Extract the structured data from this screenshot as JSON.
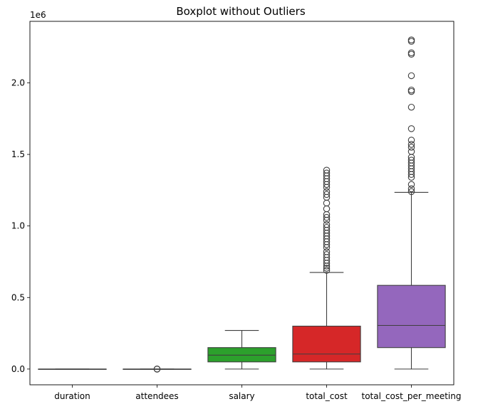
{
  "chart_data": {
    "type": "box",
    "title": "Boxplot without Outliers",
    "scale_label": "1e6",
    "xlabel": "",
    "ylabel": "",
    "ylim": [
      -110000,
      2430000
    ],
    "y_ticks": [
      0,
      500000,
      1000000,
      1500000,
      2000000
    ],
    "y_tick_labels": [
      "0.0",
      "0.5",
      "1.0",
      "1.5",
      "2.0"
    ],
    "grid": false,
    "legend": "none",
    "categories": [
      "duration",
      "attendees",
      "salary",
      "total_cost",
      "total_cost_per_meeting"
    ],
    "boxes": [
      {
        "name": "duration",
        "color": "#1f77b4",
        "whisker_low": 0,
        "q1": 0,
        "median": 0,
        "q3": 0,
        "whisker_high": 0,
        "outliers": []
      },
      {
        "name": "attendees",
        "color": "#ff7f0e",
        "whisker_low": 0,
        "q1": 0,
        "median": 0,
        "q3": 0,
        "whisker_high": 0,
        "outliers": [
          1,
          2,
          3
        ]
      },
      {
        "name": "salary",
        "color": "#2ca02c",
        "whisker_low": 0,
        "q1": 50000,
        "median": 97000,
        "q3": 150000,
        "whisker_high": 270000,
        "outliers": []
      },
      {
        "name": "total_cost",
        "color": "#d62728",
        "whisker_low": 0,
        "q1": 50000,
        "median": 105000,
        "q3": 300000,
        "whisker_high": 675000,
        "outliers": [
          690000,
          705000,
          720000,
          740000,
          760000,
          780000,
          800000,
          820000,
          850000,
          870000,
          890000,
          910000,
          930000,
          950000,
          970000,
          990000,
          1010000,
          1040000,
          1060000,
          1080000,
          1120000,
          1160000,
          1200000,
          1220000,
          1240000,
          1270000,
          1290000,
          1310000,
          1330000,
          1350000,
          1370000,
          1390000
        ]
      },
      {
        "name": "total_cost_per_meeting",
        "color": "#9467bd",
        "whisker_low": 0,
        "q1": 150000,
        "median": 305000,
        "q3": 585000,
        "whisker_high": 1235000,
        "outliers": [
          1240000,
          1260000,
          1290000,
          1340000,
          1360000,
          1380000,
          1400000,
          1420000,
          1440000,
          1460000,
          1480000,
          1520000,
          1550000,
          1570000,
          1600000,
          1680000,
          1830000,
          1940000,
          1950000,
          2050000,
          2200000,
          2210000,
          2290000,
          2300000
        ]
      }
    ]
  }
}
